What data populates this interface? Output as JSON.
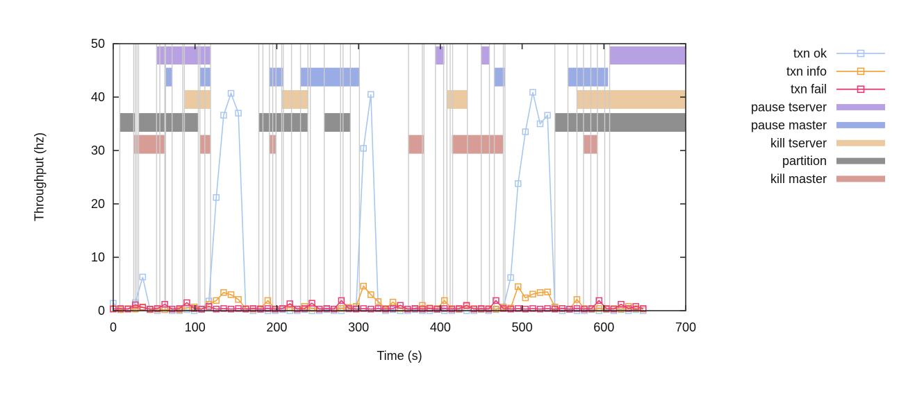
{
  "chart_data": {
    "type": "line",
    "title": "",
    "xlabel": "Time (s)",
    "ylabel": "Throughput (hz)",
    "xlim": [
      0,
      700
    ],
    "ylim": [
      0,
      50
    ],
    "xticks": [
      0,
      100,
      200,
      300,
      400,
      500,
      600,
      700
    ],
    "yticks": [
      0,
      10,
      20,
      30,
      40,
      50
    ],
    "grid": false,
    "legend_position": "outside-right",
    "axis_color": "#2b2b2b",
    "event_line_color": "#cccccc",
    "series": [
      {
        "name": "txn ok",
        "color": "#a8c7f0",
        "marker": "open-square",
        "points": [
          [
            0,
            1.4
          ],
          [
            9,
            0.2
          ],
          [
            18,
            0.3
          ],
          [
            27,
            1.5
          ],
          [
            36,
            6.3
          ],
          [
            45,
            0.2
          ],
          [
            54,
            0
          ],
          [
            63,
            0.2
          ],
          [
            72,
            0
          ],
          [
            81,
            0
          ],
          [
            90,
            0.2
          ],
          [
            99,
            0
          ],
          [
            108,
            0.2
          ],
          [
            117,
            1.8
          ],
          [
            126,
            21.2
          ],
          [
            135,
            36.6
          ],
          [
            144,
            40.7
          ],
          [
            153,
            37.0
          ],
          [
            162,
            0.3
          ],
          [
            171,
            0
          ],
          [
            180,
            0.2
          ],
          [
            189,
            0
          ],
          [
            198,
            0
          ],
          [
            207,
            0.2
          ],
          [
            216,
            0
          ],
          [
            225,
            0
          ],
          [
            234,
            0.2
          ],
          [
            243,
            0
          ],
          [
            252,
            0
          ],
          [
            261,
            0.2
          ],
          [
            270,
            0
          ],
          [
            279,
            0
          ],
          [
            288,
            0.3
          ],
          [
            297,
            0.5
          ],
          [
            306,
            30.4
          ],
          [
            315,
            40.5
          ],
          [
            324,
            0.4
          ],
          [
            333,
            0
          ],
          [
            342,
            0.2
          ],
          [
            351,
            0
          ],
          [
            360,
            0
          ],
          [
            369,
            0.2
          ],
          [
            378,
            0
          ],
          [
            387,
            0
          ],
          [
            396,
            0.2
          ],
          [
            405,
            0
          ],
          [
            414,
            0
          ],
          [
            423,
            0.2
          ],
          [
            432,
            0
          ],
          [
            441,
            0
          ],
          [
            450,
            0.2
          ],
          [
            459,
            0
          ],
          [
            468,
            0.2
          ],
          [
            477,
            0.5
          ],
          [
            486,
            6.2
          ],
          [
            495,
            23.8
          ],
          [
            504,
            33.5
          ],
          [
            513,
            40.9
          ],
          [
            522,
            35.0
          ],
          [
            531,
            36.6
          ],
          [
            540,
            0.5
          ],
          [
            549,
            0
          ],
          [
            558,
            0.2
          ],
          [
            567,
            0
          ],
          [
            576,
            0
          ],
          [
            585,
            0.2
          ],
          [
            594,
            0
          ],
          [
            603,
            0.2
          ],
          [
            612,
            0
          ],
          [
            621,
            0.2
          ],
          [
            630,
            0
          ],
          [
            639,
            0.2
          ],
          [
            648,
            0
          ]
        ]
      },
      {
        "name": "txn info",
        "color": "#f2a33c",
        "marker": "open-square",
        "points": [
          [
            0,
            0.4
          ],
          [
            9,
            0.2
          ],
          [
            18,
            0.4
          ],
          [
            27,
            0.3
          ],
          [
            36,
            0.7
          ],
          [
            45,
            0.2
          ],
          [
            54,
            0.3
          ],
          [
            63,
            0.2
          ],
          [
            72,
            0.3
          ],
          [
            81,
            0.2
          ],
          [
            90,
            0.5
          ],
          [
            99,
            0.7
          ],
          [
            108,
            0.3
          ],
          [
            117,
            1.2
          ],
          [
            126,
            1.9
          ],
          [
            135,
            3.4
          ],
          [
            144,
            3.0
          ],
          [
            153,
            2.1
          ],
          [
            162,
            0.4
          ],
          [
            171,
            0.3
          ],
          [
            180,
            0.4
          ],
          [
            189,
            1.9
          ],
          [
            198,
            0.3
          ],
          [
            207,
            0.4
          ],
          [
            216,
            0.6
          ],
          [
            225,
            0.3
          ],
          [
            234,
            0.8
          ],
          [
            243,
            0.4
          ],
          [
            252,
            0.3
          ],
          [
            261,
            0.4
          ],
          [
            270,
            0.3
          ],
          [
            279,
            0.4
          ],
          [
            288,
            0.6
          ],
          [
            297,
            0.8
          ],
          [
            306,
            4.6
          ],
          [
            315,
            3.0
          ],
          [
            324,
            1.7
          ],
          [
            333,
            0.4
          ],
          [
            342,
            1.6
          ],
          [
            351,
            0.4
          ],
          [
            360,
            0.3
          ],
          [
            369,
            0.4
          ],
          [
            378,
            1.0
          ],
          [
            387,
            0.5
          ],
          [
            396,
            0.4
          ],
          [
            405,
            1.9
          ],
          [
            414,
            0.4
          ],
          [
            423,
            0.3
          ],
          [
            432,
            0.9
          ],
          [
            441,
            0.4
          ],
          [
            450,
            0.3
          ],
          [
            459,
            0.4
          ],
          [
            468,
            0.3
          ],
          [
            477,
            0.7
          ],
          [
            486,
            0.5
          ],
          [
            495,
            4.5
          ],
          [
            504,
            2.4
          ],
          [
            513,
            3.1
          ],
          [
            522,
            3.4
          ],
          [
            531,
            3.5
          ],
          [
            540,
            0.7
          ],
          [
            549,
            0.4
          ],
          [
            558,
            0.3
          ],
          [
            567,
            2.1
          ],
          [
            576,
            0.4
          ],
          [
            585,
            0.3
          ],
          [
            594,
            0.4
          ],
          [
            603,
            0.3
          ],
          [
            612,
            0.4
          ],
          [
            621,
            0.3
          ],
          [
            630,
            0.8
          ],
          [
            639,
            0.4
          ],
          [
            648,
            0.3
          ]
        ]
      },
      {
        "name": "txn fail",
        "color": "#e83a75",
        "marker": "open-square",
        "points": [
          [
            0,
            0.3
          ],
          [
            9,
            0.4
          ],
          [
            18,
            0.3
          ],
          [
            27,
            1.1
          ],
          [
            36,
            0.6
          ],
          [
            45,
            0.3
          ],
          [
            54,
            0.4
          ],
          [
            63,
            1.2
          ],
          [
            72,
            0.3
          ],
          [
            81,
            0.4
          ],
          [
            90,
            1.5
          ],
          [
            99,
            0.4
          ],
          [
            108,
            0.3
          ],
          [
            117,
            0.8
          ],
          [
            126,
            0.3
          ],
          [
            135,
            0.4
          ],
          [
            144,
            0.3
          ],
          [
            153,
            0.4
          ],
          [
            162,
            0.3
          ],
          [
            171,
            0.4
          ],
          [
            180,
            0.3
          ],
          [
            189,
            0.4
          ],
          [
            198,
            0.3
          ],
          [
            207,
            0.4
          ],
          [
            216,
            1.3
          ],
          [
            225,
            0.3
          ],
          [
            234,
            0.4
          ],
          [
            243,
            1.4
          ],
          [
            252,
            0.3
          ],
          [
            261,
            0.4
          ],
          [
            270,
            0.3
          ],
          [
            279,
            1.9
          ],
          [
            288,
            0.4
          ],
          [
            297,
            0.3
          ],
          [
            306,
            0.4
          ],
          [
            315,
            0.3
          ],
          [
            324,
            0.4
          ],
          [
            333,
            0.3
          ],
          [
            342,
            0.4
          ],
          [
            351,
            1.0
          ],
          [
            360,
            0.3
          ],
          [
            369,
            0.4
          ],
          [
            378,
            0.3
          ],
          [
            387,
            0.4
          ],
          [
            396,
            0.3
          ],
          [
            405,
            0.4
          ],
          [
            414,
            0.3
          ],
          [
            423,
            0.4
          ],
          [
            432,
            1.0
          ],
          [
            441,
            0.3
          ],
          [
            450,
            0.4
          ],
          [
            459,
            0.3
          ],
          [
            468,
            1.9
          ],
          [
            477,
            0.4
          ],
          [
            486,
            0.3
          ],
          [
            495,
            0.4
          ],
          [
            504,
            0.3
          ],
          [
            513,
            0.4
          ],
          [
            522,
            0.3
          ],
          [
            531,
            0.4
          ],
          [
            540,
            0.3
          ],
          [
            549,
            0.4
          ],
          [
            558,
            0.3
          ],
          [
            567,
            0.4
          ],
          [
            576,
            0.3
          ],
          [
            585,
            0.4
          ],
          [
            594,
            1.9
          ],
          [
            603,
            0.4
          ],
          [
            612,
            0.3
          ],
          [
            621,
            1.2
          ],
          [
            630,
            0.4
          ],
          [
            639,
            0.8
          ],
          [
            648,
            0.4
          ]
        ]
      }
    ],
    "bands": [
      {
        "name": "pause tserver",
        "color": "#b7a1e2",
        "y_range": [
          46.1,
          49.5
        ],
        "intervals": [
          [
            53,
            119
          ],
          [
            394,
            405
          ],
          [
            450,
            460
          ],
          [
            607,
            700
          ]
        ]
      },
      {
        "name": "pause master",
        "color": "#9aace6",
        "y_range": [
          42.0,
          45.5
        ],
        "intervals": [
          [
            64,
            72
          ],
          [
            106,
            119
          ],
          [
            191,
            208
          ],
          [
            229,
            301
          ],
          [
            466,
            479
          ],
          [
            556,
            605
          ]
        ]
      },
      {
        "name": "kill tserver",
        "color": "#ebcaa1",
        "y_range": [
          37.8,
          41.3
        ],
        "intervals": [
          [
            87,
            119
          ],
          [
            206,
            238
          ],
          [
            408,
            433
          ],
          [
            567,
            700
          ]
        ]
      },
      {
        "name": "partition",
        "color": "#8f8f8f",
        "y_range": [
          33.5,
          37.0
        ],
        "intervals": [
          [
            8,
            27
          ],
          [
            31,
            104
          ],
          [
            178,
            238
          ],
          [
            258,
            290
          ],
          [
            540,
            700
          ]
        ]
      },
      {
        "name": "kill master",
        "color": "#d79c96",
        "y_range": [
          29.4,
          32.9
        ],
        "intervals": [
          [
            25,
            63
          ],
          [
            106,
            119
          ],
          [
            191,
            199
          ],
          [
            361,
            380
          ],
          [
            414,
            477
          ],
          [
            575,
            592
          ]
        ]
      }
    ],
    "event_lines": [
      8,
      25,
      27,
      29,
      31,
      53,
      57,
      63,
      64,
      72,
      85,
      87,
      104,
      106,
      112,
      119,
      178,
      183,
      191,
      195,
      199,
      206,
      208,
      218,
      229,
      238,
      241,
      258,
      278,
      281,
      290,
      301,
      361,
      378,
      380,
      394,
      404,
      408,
      412,
      415,
      433,
      450,
      460,
      466,
      477,
      479,
      540,
      556,
      567,
      575,
      584,
      592,
      601,
      607
    ],
    "legend": [
      {
        "label": "txn ok",
        "type": "line",
        "color": "#a8c7f0"
      },
      {
        "label": "txn info",
        "type": "line",
        "color": "#f2a33c"
      },
      {
        "label": "txn fail",
        "type": "line",
        "color": "#e83a75"
      },
      {
        "label": "pause tserver",
        "type": "band",
        "color": "#b7a1e2"
      },
      {
        "label": "pause master",
        "type": "band",
        "color": "#9aace6"
      },
      {
        "label": "kill tserver",
        "type": "band",
        "color": "#ebcaa1"
      },
      {
        "label": "partition",
        "type": "band",
        "color": "#8f8f8f"
      },
      {
        "label": "kill master",
        "type": "band",
        "color": "#d79c96"
      }
    ]
  }
}
